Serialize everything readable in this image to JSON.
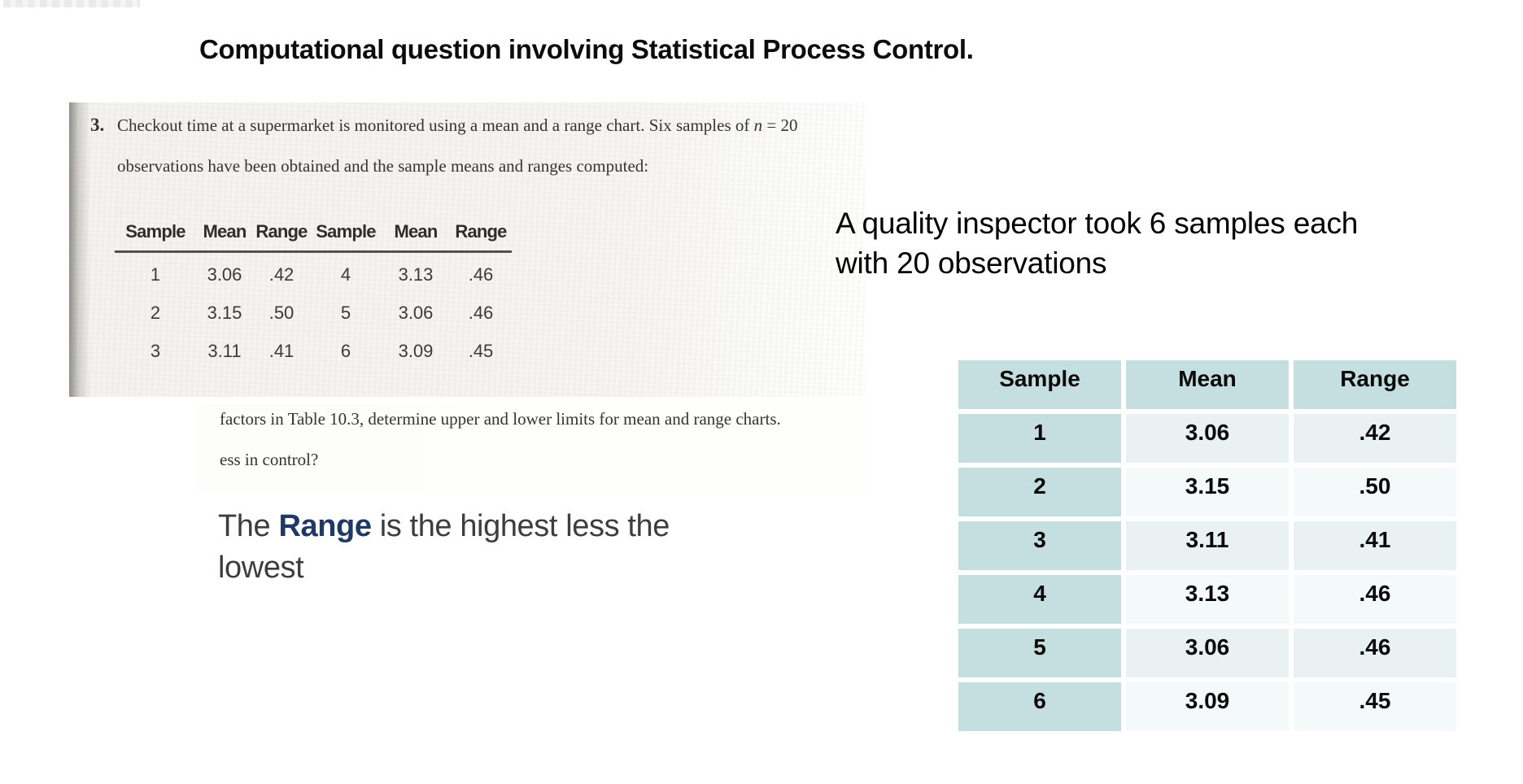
{
  "title": "Computational question involving Statistical Process Control.",
  "textbook_scan": {
    "question_number": "3.",
    "line1_before_n": "Checkout time at a supermarket is monitored using a mean and a range chart. Six samples of ",
    "line1_n": "n",
    "line1_after_n": " = 20",
    "line2": "observations have been obtained and the sample means and ranges computed:",
    "table": {
      "headers": [
        "Sample",
        "Mean",
        "Range",
        "Sample",
        "Mean",
        "Range"
      ],
      "rows": [
        [
          "1",
          "3.06",
          ".42",
          "4",
          "3.13",
          ".46"
        ],
        [
          "2",
          "3.15",
          ".50",
          "5",
          "3.06",
          ".46"
        ],
        [
          "3",
          "3.11",
          ".41",
          "6",
          "3.09",
          ".45"
        ]
      ]
    },
    "continuation_line1": "factors in Table 10.3, determine upper and lower limits for mean and range charts.",
    "continuation_line2": "ess in control?"
  },
  "inspector_note": {
    "line1": "A quality inspector took 6 samples each",
    "line2": "with 20 observations"
  },
  "range_note": {
    "before": "The ",
    "bold": "Range",
    "after": " is the highest less the",
    "line2": "lowest"
  },
  "data_table": {
    "headers": [
      "Sample",
      "Mean",
      "Range"
    ],
    "rows": [
      [
        "1",
        "3.06",
        ".42"
      ],
      [
        "2",
        "3.15",
        ".50"
      ],
      [
        "3",
        "3.11",
        ".41"
      ],
      [
        "4",
        "3.13",
        ".46"
      ],
      [
        "5",
        "3.06",
        ".46"
      ],
      [
        "6",
        "3.09",
        ".45"
      ]
    ]
  },
  "colors": {
    "table_header_bg": "#c5dee0",
    "sample_column_bg": "#c5dee0",
    "row_band_dark": "#e9f1f2",
    "row_band_light": "#f4f9f9",
    "range_bold_navy": "#1f3864",
    "scan_paper": "#f6f5f2"
  }
}
